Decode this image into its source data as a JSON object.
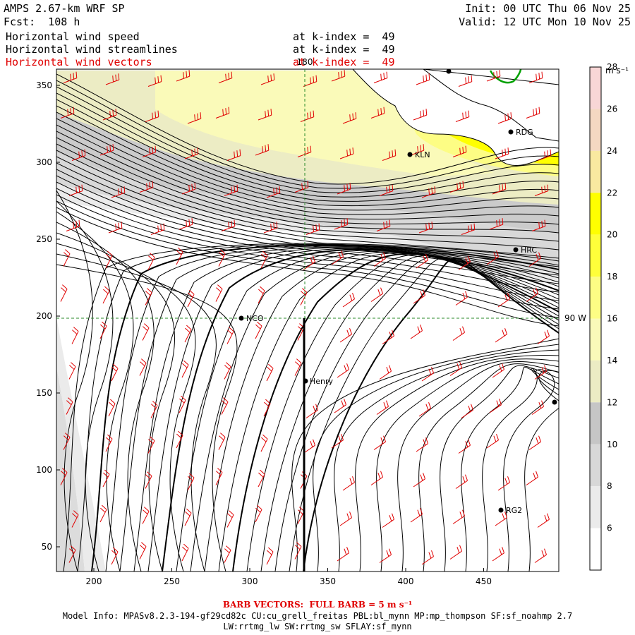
{
  "header": {
    "model_title": "AMPS 2.67-km WRF SP",
    "forecast": "Fcst:  108 h",
    "init": "Init: 00 UTC Thu 06 Nov 25",
    "valid": "Valid: 12 UTC Mon 10 Nov 25"
  },
  "fields": [
    {
      "name": "Horizontal wind speed",
      "level": "at k-index =  49",
      "color": "#000000"
    },
    {
      "name": "Horizontal wind streamlines",
      "level": "at k-index =  49",
      "color": "#000000"
    },
    {
      "name": "Horizontal wind vectors",
      "level": "at k-index =  49",
      "color": "#e00000"
    }
  ],
  "axes": {
    "x_ticks": [
      "200",
      "250",
      "300",
      "350",
      "400",
      "450"
    ],
    "y_ticks": [
      "50",
      "100",
      "150",
      "200",
      "250",
      "300",
      "350"
    ],
    "lon_label_top": "180",
    "lon_label_right": "90 W"
  },
  "stations": [
    {
      "id": "RDG",
      "label": "RDG"
    },
    {
      "id": "KLN",
      "label": "KLN"
    },
    {
      "id": "HRC",
      "label": "HRC"
    },
    {
      "id": "NCO",
      "label": "NCO"
    },
    {
      "id": "Henry",
      "label": "Henry"
    },
    {
      "id": "RG2",
      "label": "RG2"
    }
  ],
  "colorbar": {
    "units": "m s⁻¹",
    "levels": [
      "6",
      "8",
      "10",
      "12",
      "14",
      "16",
      "18",
      "20",
      "22",
      "24",
      "26",
      "28"
    ],
    "colors": [
      "#ffffff",
      "#ebebeb",
      "#d8d8d8",
      "#c6c6c6",
      "#ececc4",
      "#fafab9",
      "#fdfd84",
      "#ffff3a",
      "#ffff00",
      "#f9e9a0",
      "#f4d8c2",
      "#f8d6d6"
    ]
  },
  "footer": {
    "barb_text": "BARB VECTORS:  FULL BARB = 5 m s⁻¹",
    "model_info_1": "Model Info: MPASv8.2.3-194-gf29cd82c CU:cu_grell_freitas PBL:bl_mynn MP:mp_thompson SF:sf_noahmp 2.7",
    "model_info_2": "LW:rrtmg_lw SW:rrtmg_sw SFLAY:sf_mynn"
  }
}
